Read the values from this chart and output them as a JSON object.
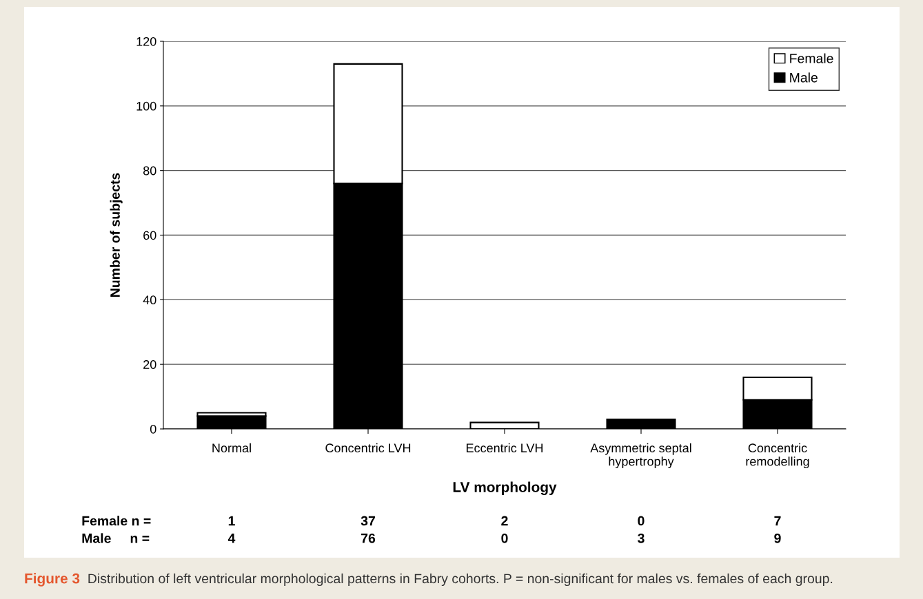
{
  "chart_data": {
    "type": "bar",
    "stacked": true,
    "xlabel": "LV morphology",
    "ylabel": "Number of subjects",
    "categories": [
      "Normal",
      "Concentric LVH",
      "Eccentric LVH",
      "Asymmetric septal\nhypertrophy",
      "Concentric\nremodelling"
    ],
    "series": [
      {
        "name": "Male",
        "color": "#000000",
        "values": [
          4,
          76,
          0,
          3,
          9
        ]
      },
      {
        "name": "Female",
        "color": "#ffffff",
        "values": [
          1,
          37,
          2,
          0,
          7
        ]
      }
    ],
    "ylim": [
      0,
      120
    ],
    "yticks": [
      0,
      20,
      40,
      60,
      80,
      100,
      120
    ],
    "grid": "y",
    "legend": "top right",
    "data_labels": true,
    "annotations": [
      "Male     n =",
      "Female n =",
      "Figure 3",
      "Distribution of left ventricular morphological patterns in Fabry cohorts. P = non-significant for males vs. females of each group."
    ]
  }
}
